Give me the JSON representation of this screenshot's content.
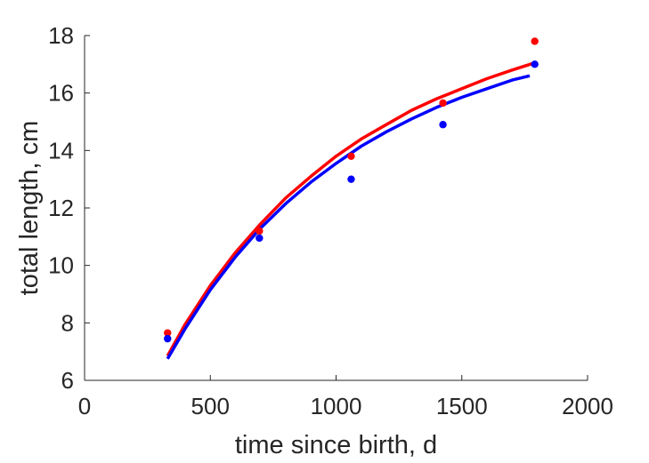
{
  "chart_data": {
    "type": "scatter",
    "title": "",
    "xlabel": "time since birth, d",
    "ylabel": "total length, cm",
    "xlim": [
      0,
      2000
    ],
    "ylim": [
      6,
      18
    ],
    "xticks": [
      0,
      500,
      1000,
      1500,
      2000
    ],
    "yticks": [
      6,
      8,
      10,
      12,
      14,
      16,
      18
    ],
    "grid": false,
    "legend": "none",
    "series": [
      {
        "color": "#ff0000",
        "points": {
          "x": [
            330,
            695,
            1060,
            1425,
            1790
          ],
          "y": [
            7.65,
            11.2,
            13.8,
            15.65,
            17.8
          ]
        },
        "fit": {
          "x": [
            330,
            400,
            500,
            600,
            700,
            800,
            900,
            1000,
            1100,
            1200,
            1300,
            1400,
            1500,
            1600,
            1700,
            1790
          ],
          "y": [
            6.85,
            7.95,
            9.3,
            10.45,
            11.45,
            12.35,
            13.1,
            13.8,
            14.4,
            14.9,
            15.4,
            15.8,
            16.15,
            16.5,
            16.8,
            17.05
          ]
        }
      },
      {
        "color": "#0000ff",
        "points": {
          "x": [
            330,
            695,
            1060,
            1425,
            1790
          ],
          "y": [
            7.45,
            10.95,
            13.0,
            14.9,
            17.0
          ]
        },
        "fit": {
          "x": [
            330,
            400,
            500,
            600,
            700,
            800,
            900,
            1000,
            1100,
            1200,
            1300,
            1400,
            1500,
            1600,
            1700,
            1770
          ],
          "y": [
            6.75,
            7.8,
            9.15,
            10.3,
            11.3,
            12.15,
            12.9,
            13.55,
            14.15,
            14.65,
            15.1,
            15.5,
            15.85,
            16.15,
            16.45,
            16.6
          ]
        }
      }
    ]
  }
}
